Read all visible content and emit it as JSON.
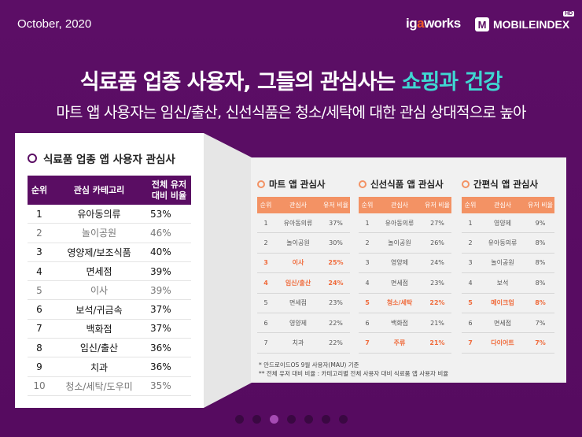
{
  "header": {
    "date": "October, 2020",
    "logo_igaworks_a": "ig",
    "logo_igaworks_b": "a",
    "logo_igaworks_c": "works",
    "logo_mobileindex_letter": "M",
    "logo_mobileindex_text": "MOBILEINDEX",
    "logo_mobileindex_badge": "HD"
  },
  "title": {
    "main": "식료품 업종 사용자, 그들의 관심사는 ",
    "highlight": "쇼핑과 건강"
  },
  "subtitle": "마트 앱 사용자는 임신/출산, 신선식품은 청소/세탁에 대한 관심 상대적으로 높아",
  "left": {
    "heading": "식료품 업종 앱 사용자 관심사",
    "columns": [
      "순위",
      "관심 카테고리",
      "전체 유저",
      "대비 비율"
    ],
    "rows": [
      {
        "rank": "1",
        "category": "유아동의류",
        "ratio": "53%"
      },
      {
        "rank": "2",
        "category": "놀이공원",
        "ratio": "46%"
      },
      {
        "rank": "3",
        "category": "영양제/보조식품",
        "ratio": "40%"
      },
      {
        "rank": "4",
        "category": "면세점",
        "ratio": "39%"
      },
      {
        "rank": "5",
        "category": "이사",
        "ratio": "39%"
      },
      {
        "rank": "6",
        "category": "보석/귀금속",
        "ratio": "37%"
      },
      {
        "rank": "7",
        "category": "백화점",
        "ratio": "37%"
      },
      {
        "rank": "8",
        "category": "임신/출산",
        "ratio": "36%"
      },
      {
        "rank": "9",
        "category": "치과",
        "ratio": "36%"
      },
      {
        "rank": "10",
        "category": "청소/세탁/도우미",
        "ratio": "35%"
      }
    ]
  },
  "right": {
    "columns": [
      "순위",
      "관심사",
      "유저 비율"
    ],
    "tables": [
      {
        "heading": "마트 앱 관심사",
        "rows": [
          {
            "rank": "1",
            "name": "유아동의류",
            "pct": "37%"
          },
          {
            "rank": "2",
            "name": "놀이공원",
            "pct": "30%"
          },
          {
            "rank": "3",
            "name": "이사",
            "pct": "25%"
          },
          {
            "rank": "4",
            "name": "임신/출산",
            "pct": "24%"
          },
          {
            "rank": "5",
            "name": "면세점",
            "pct": "23%"
          },
          {
            "rank": "6",
            "name": "영양제",
            "pct": "22%"
          },
          {
            "rank": "7",
            "name": "치과",
            "pct": "22%"
          }
        ]
      },
      {
        "heading": "신선식품 앱 관심사",
        "rows": [
          {
            "rank": "1",
            "name": "유아동의류",
            "pct": "27%"
          },
          {
            "rank": "2",
            "name": "놀이공원",
            "pct": "26%"
          },
          {
            "rank": "3",
            "name": "영양제",
            "pct": "24%"
          },
          {
            "rank": "4",
            "name": "면세점",
            "pct": "23%"
          },
          {
            "rank": "5",
            "name": "청소/세탁",
            "pct": "22%"
          },
          {
            "rank": "6",
            "name": "백화점",
            "pct": "21%"
          },
          {
            "rank": "7",
            "name": "주류",
            "pct": "21%"
          }
        ]
      },
      {
        "heading": "간편식 앱 관심사",
        "rows": [
          {
            "rank": "1",
            "name": "영양제",
            "pct": "9%"
          },
          {
            "rank": "2",
            "name": "유아동의류",
            "pct": "8%"
          },
          {
            "rank": "3",
            "name": "놀이공원",
            "pct": "8%"
          },
          {
            "rank": "4",
            "name": "보석",
            "pct": "8%"
          },
          {
            "rank": "5",
            "name": "메이크업",
            "pct": "8%"
          },
          {
            "rank": "6",
            "name": "면세점",
            "pct": "7%"
          },
          {
            "rank": "7",
            "name": "다이어트",
            "pct": "7%"
          }
        ]
      }
    ],
    "note1": "* 안드로이드OS 9월 사용자(MAU) 기준",
    "note2": "** 전체 유저 대비 비율 : 카테고리별 전체 사용자 대비 식료품 앱 사용자 비율"
  },
  "colors": {
    "background": "#5a0d63",
    "highlight": "#3fd7d2",
    "table_header_right": "#f39264",
    "emphasis": "#f06a3a"
  },
  "pager": {
    "count": 7,
    "active_index": 2
  }
}
